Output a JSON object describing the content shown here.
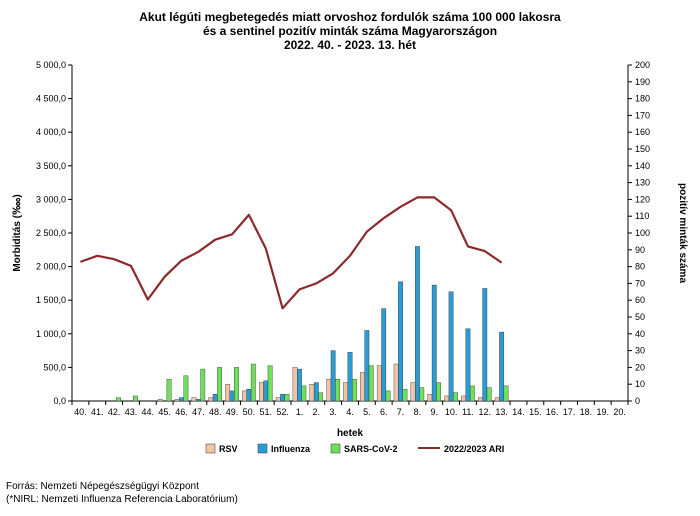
{
  "title_lines": [
    "Akut légúti megbetegedés miatt orvoshoz fordulók száma 100 000 lakosra",
    "és a sentinel pozitív minták száma Magyarországon",
    "2022. 40. - 2023. 13. hét"
  ],
  "source": "Forrás: Nemzeti Népegészségügyi Központ",
  "note": "(*NIRL: Nemzeti Influenza Referencia Laboratórium)",
  "colors": {
    "rsv": "#f2c4a7",
    "influenza": "#2b9bd4",
    "sars": "#6ee05a",
    "ari": "#8b2a2a",
    "axis": "#000000",
    "grid": "#d0d0d0"
  },
  "chart_data": {
    "type": "bar+line",
    "title": "Akut légúti megbetegedés miatt orvoshoz fordulók száma 100 000 lakosra és a sentinel pozitív minták száma Magyarországon 2022. 40. - 2023. 13. hét",
    "xlabel": "hetek",
    "ylabel_left": "Morbiditás (‱)",
    "ylabel_right": "pozitív minták száma",
    "ylim_left": [
      0,
      5000
    ],
    "ylim_right": [
      0,
      200
    ],
    "left_ticks": [
      "0,0",
      "500,0",
      "1 000,0",
      "1 500,0",
      "2 000,0",
      "2 500,0",
      "3 000,0",
      "3 500,0",
      "4 000,0",
      "4 500,0",
      "5 000,0"
    ],
    "right_ticks": [
      "0",
      "10",
      "20",
      "30",
      "40",
      "50",
      "60",
      "70",
      "80",
      "90",
      "100",
      "110",
      "120",
      "130",
      "140",
      "150",
      "160",
      "170",
      "180",
      "190",
      "200"
    ],
    "categories": [
      "40.",
      "41.",
      "42.",
      "43.",
      "44.",
      "45.",
      "46.",
      "47.",
      "48.",
      "49.",
      "50.",
      "51.",
      "52.",
      "1.",
      "2.",
      "3.",
      "4.",
      "5.",
      "6.",
      "7.",
      "8.",
      "9.",
      "10.",
      "11.",
      "12.",
      "13.",
      "14.",
      "15.",
      "16.",
      "17.",
      "18.",
      "19.",
      "20."
    ],
    "bar_series": [
      {
        "name": "RSV",
        "axis": "right",
        "values": [
          0,
          0,
          0,
          0,
          0,
          1,
          1,
          2,
          2,
          10,
          6,
          11,
          2,
          20,
          10,
          13,
          11,
          17,
          21,
          22,
          11,
          4,
          3,
          3,
          2,
          2,
          0,
          0,
          0,
          0,
          0,
          0,
          0
        ]
      },
      {
        "name": "Influenza",
        "axis": "right",
        "values": [
          0,
          0,
          0,
          0,
          0,
          0,
          2,
          1,
          4,
          6,
          7,
          12,
          4,
          19,
          11,
          30,
          29,
          42,
          55,
          71,
          92,
          69,
          65,
          43,
          67,
          41,
          0,
          0,
          0,
          0,
          0,
          0,
          0
        ]
      },
      {
        "name": "SARS-CoV-2",
        "axis": "right",
        "values": [
          0,
          0,
          2,
          3,
          0,
          13,
          15,
          19,
          20,
          20,
          22,
          21,
          4,
          9,
          5,
          13,
          13,
          21,
          6,
          7,
          8,
          11,
          5,
          9,
          8,
          9,
          0,
          0,
          0,
          0,
          0,
          0,
          0
        ]
      }
    ],
    "line_series": [
      {
        "name": "2022/2023 ARI",
        "axis": "left",
        "values": [
          2070,
          2160,
          2110,
          2010,
          1510,
          1850,
          2090,
          2220,
          2400,
          2480,
          2770,
          2270,
          1380,
          1660,
          1750,
          1900,
          2160,
          2520,
          2720,
          2890,
          3030,
          3030,
          2840,
          2300,
          2230,
          2060
        ]
      }
    ],
    "grid": false,
    "legend": "bottom"
  }
}
